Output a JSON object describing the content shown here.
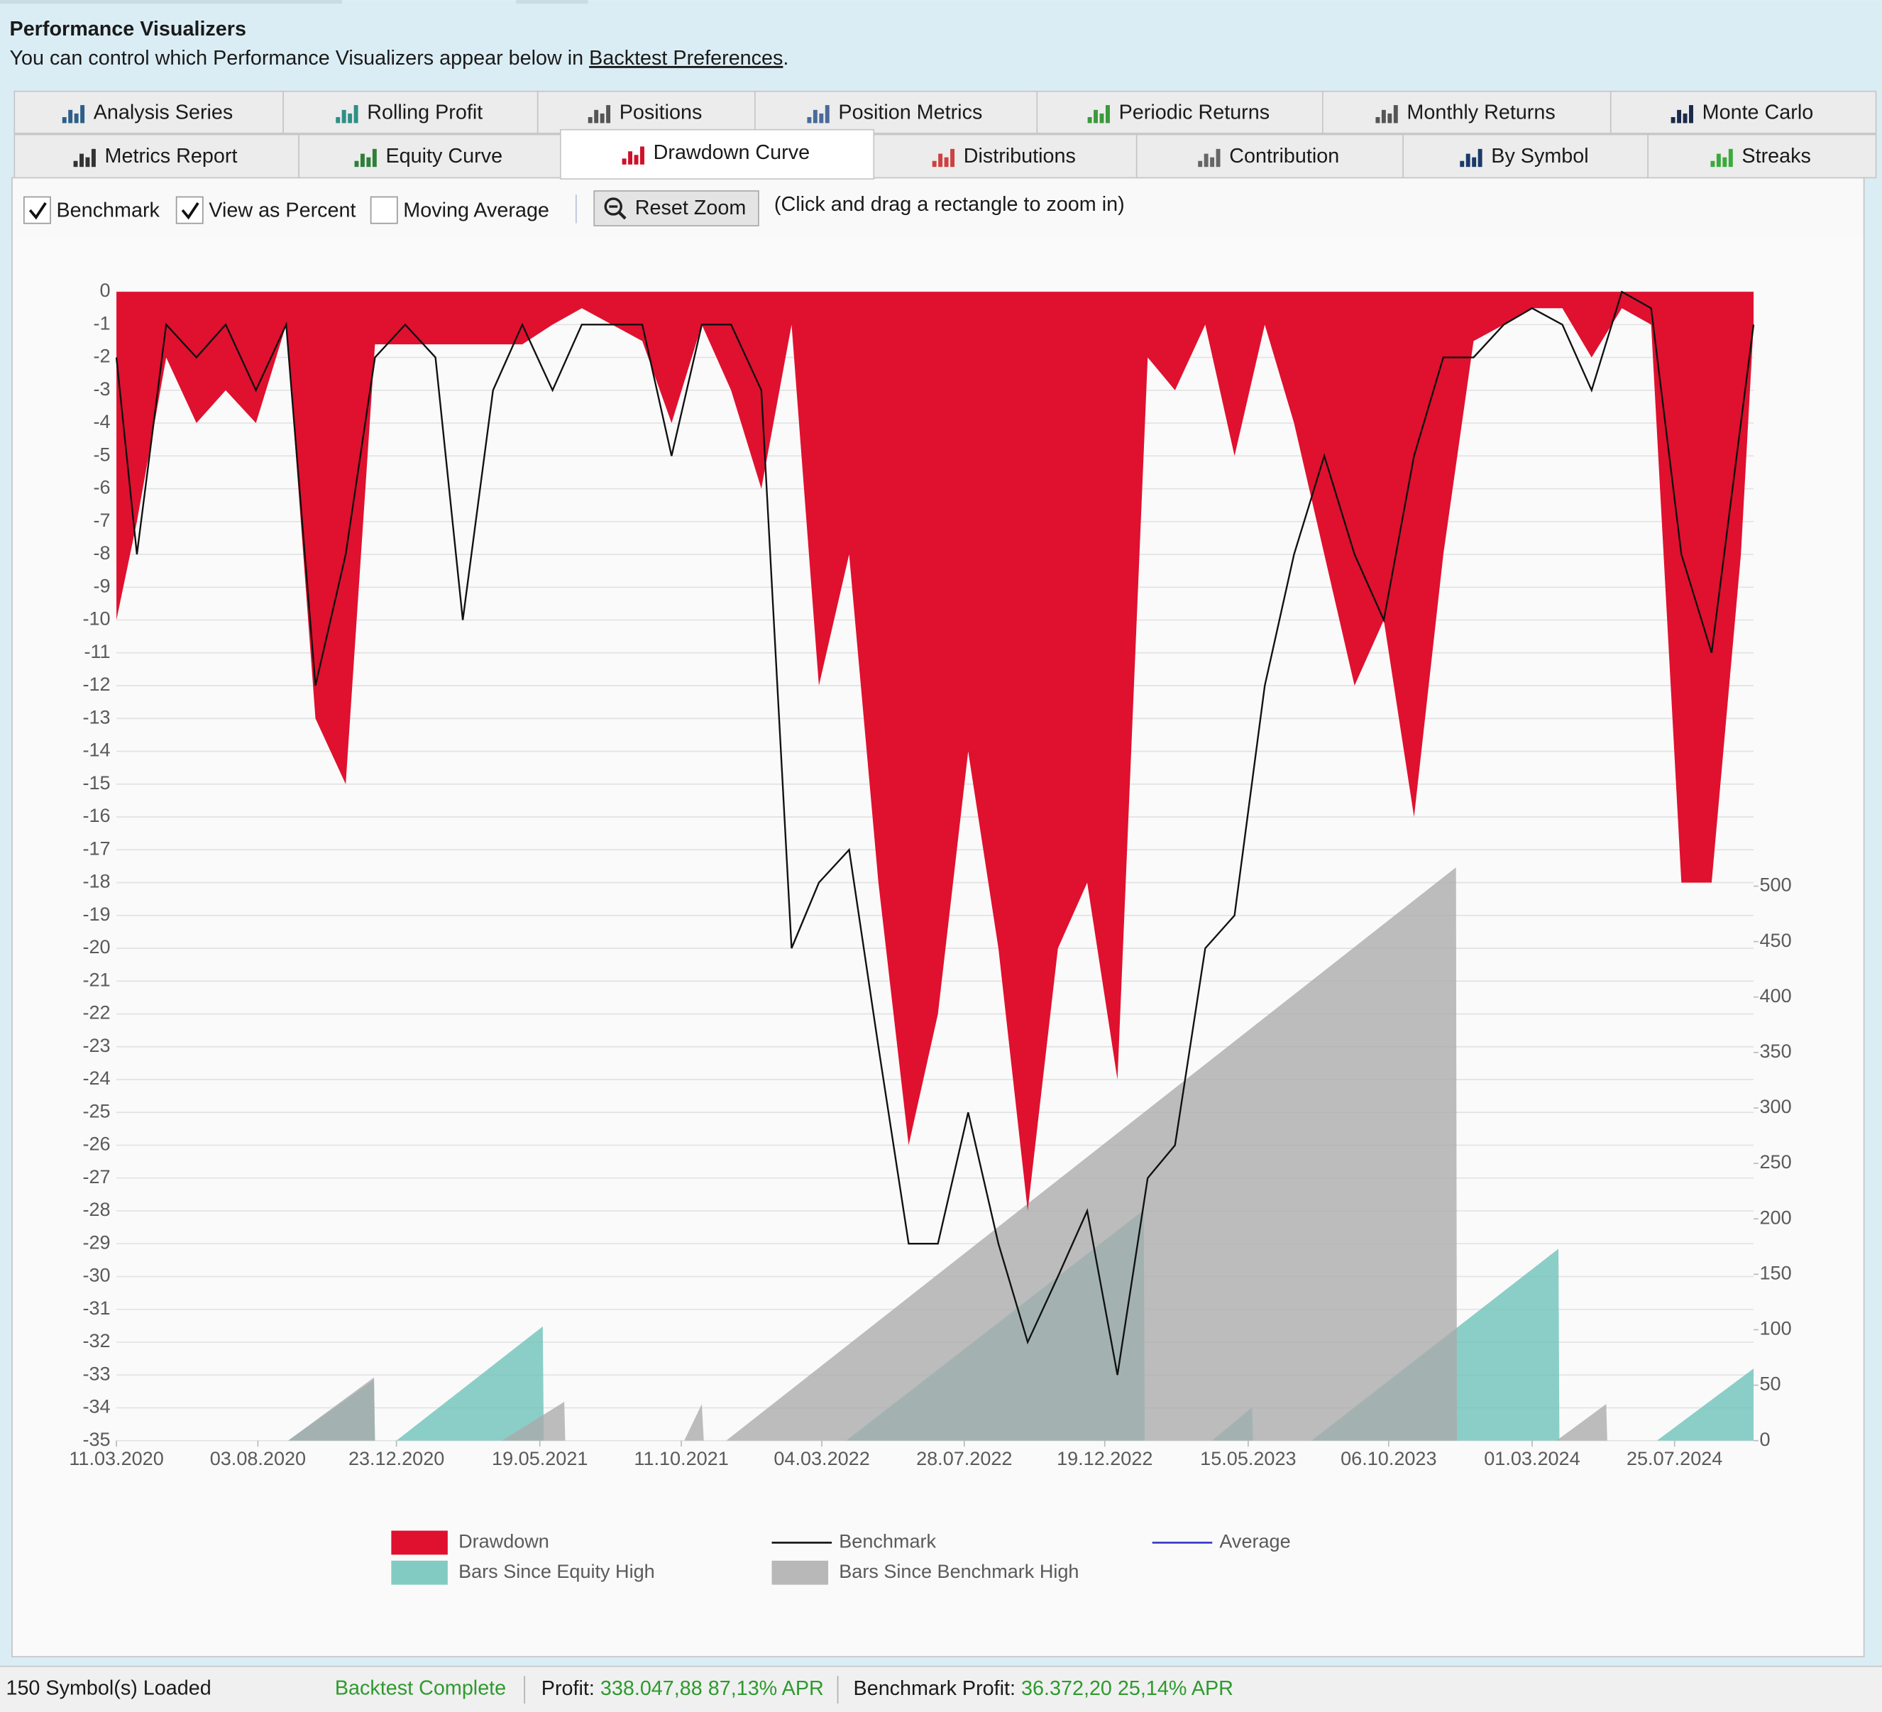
{
  "header": {
    "title": "Performance Visualizers",
    "text": "You can control which Performance Visualizers appear below in ",
    "link": "Backtest Preferences",
    "period": "."
  },
  "tabs": {
    "rows": [
      [
        {
          "label": "Analysis Series"
        },
        {
          "label": "Rolling Profit"
        },
        {
          "label": "Positions"
        },
        {
          "label": "Position Metrics"
        },
        {
          "label": "Periodic Returns"
        },
        {
          "label": "Monthly Returns"
        },
        {
          "label": "Monte Carlo"
        }
      ],
      [
        {
          "label": "Metrics Report"
        },
        {
          "label": "Equity Curve"
        },
        {
          "label": "Drawdown Curve",
          "selected": true
        },
        {
          "label": "Distributions"
        },
        {
          "label": "Contribution"
        },
        {
          "label": "By Symbol"
        },
        {
          "label": "Streaks"
        }
      ]
    ]
  },
  "toolbar": {
    "options": [
      {
        "label": "Benchmark",
        "checked": true
      },
      {
        "label": "View as Percent",
        "checked": true
      },
      {
        "label": "Moving Average",
        "checked": false
      }
    ],
    "button": "Reset Zoom",
    "hint": "(Click and drag a rectangle to zoom in)"
  },
  "chart_data": {
    "type": "area",
    "xlim": [
      "2020-03-11",
      "2024-10-14"
    ],
    "xticks": [
      {
        "value": "2020-03-11",
        "label": "11.03.2020"
      },
      {
        "value": "2020-08-03",
        "label": "03.08.2020"
      },
      {
        "value": "2020-12-23",
        "label": "23.12.2020"
      },
      {
        "value": "2021-05-19",
        "label": "19.05.2021"
      },
      {
        "value": "2021-10-11",
        "label": "11.10.2021"
      },
      {
        "value": "2022-03-04",
        "label": "04.03.2022"
      },
      {
        "value": "2022-07-28",
        "label": "28.07.2022"
      },
      {
        "value": "2022-12-19",
        "label": "19.12.2022"
      },
      {
        "value": "2023-05-15",
        "label": "15.05.2023"
      },
      {
        "value": "2023-10-06",
        "label": "06.10.2023"
      },
      {
        "value": "2024-03-01",
        "label": "01.03.2024"
      },
      {
        "value": "2024-07-25",
        "label": "25.07.2024"
      }
    ],
    "ylim": [
      -35,
      0
    ],
    "yticks": [
      -35,
      -34,
      -33,
      -32,
      -31,
      -30,
      -29,
      -28,
      -27,
      -26,
      -25,
      -24,
      -23,
      -22,
      -21,
      -20,
      -19,
      -18,
      -17,
      -16,
      -15,
      -14,
      -13,
      -12,
      -11,
      -10,
      -9,
      -8,
      -7,
      -6,
      -5,
      -4,
      -3,
      -2,
      -1,
      0
    ],
    "y2lim": [
      0,
      1036
    ],
    "y2ticks": [
      0,
      50,
      100,
      150,
      200,
      250,
      300,
      350,
      400,
      450,
      500
    ],
    "grid": true,
    "legend": "bottom",
    "series": [
      {
        "name": "Drawdown",
        "type": "area",
        "color": "#e0102f",
        "x": [
          "2020-03-11",
          "2020-04-01",
          "2020-05-01",
          "2020-06-01",
          "2020-07-01",
          "2020-08-01",
          "2020-09-01",
          "2020-10-01",
          "2020-11-01",
          "2020-12-01",
          "2021-01-01",
          "2021-02-01",
          "2021-03-01",
          "2021-04-01",
          "2021-05-01",
          "2021-06-01",
          "2021-07-01",
          "2021-08-01",
          "2021-09-01",
          "2021-10-01",
          "2021-11-01",
          "2021-12-01",
          "2022-01-01",
          "2022-02-01",
          "2022-03-01",
          "2022-04-01",
          "2022-05-01",
          "2022-06-01",
          "2022-07-01",
          "2022-08-01",
          "2022-09-01",
          "2022-10-01",
          "2022-11-01",
          "2022-12-01",
          "2023-01-01",
          "2023-02-01",
          "2023-03-01",
          "2023-04-01",
          "2023-05-01",
          "2023-06-01",
          "2023-07-01",
          "2023-08-01",
          "2023-09-01",
          "2023-10-01",
          "2023-11-01",
          "2023-12-01",
          "2024-01-01",
          "2024-02-01",
          "2024-03-01",
          "2024-04-01",
          "2024-05-01",
          "2024-06-01",
          "2024-07-01",
          "2024-08-01",
          "2024-09-01",
          "2024-10-01",
          "2024-10-14"
        ],
        "values": [
          -10,
          -7,
          -2,
          -4,
          -3,
          -4,
          -1,
          -13,
          -15,
          -1.6,
          -1.6,
          -1.6,
          -1.6,
          -1.6,
          -1.6,
          -1,
          -0.5,
          -1,
          -1.5,
          -4,
          -1,
          -3,
          -6,
          -1,
          -12,
          -8,
          -18,
          -26,
          -22,
          -14,
          -20,
          -28,
          -20,
          -18,
          -24,
          -2,
          -3,
          -1,
          -5,
          -1,
          -4,
          -8,
          -12,
          -10,
          -16,
          -8,
          -1.5,
          -1,
          -0.5,
          -0.5,
          -2,
          -0.5,
          -1,
          -18,
          -18,
          -8,
          -1
        ]
      },
      {
        "name": "Benchmark",
        "type": "line",
        "color": "#111111",
        "x": [
          "2020-03-11",
          "2020-04-01",
          "2020-05-01",
          "2020-06-01",
          "2020-07-01",
          "2020-08-01",
          "2020-09-01",
          "2020-10-01",
          "2020-11-01",
          "2020-12-01",
          "2021-01-01",
          "2021-02-01",
          "2021-03-01",
          "2021-04-01",
          "2021-05-01",
          "2021-06-01",
          "2021-07-01",
          "2021-08-01",
          "2021-09-01",
          "2021-10-01",
          "2021-11-01",
          "2021-12-01",
          "2022-01-01",
          "2022-02-01",
          "2022-03-01",
          "2022-04-01",
          "2022-05-01",
          "2022-06-01",
          "2022-07-01",
          "2022-08-01",
          "2022-09-01",
          "2022-10-01",
          "2022-11-01",
          "2022-12-01",
          "2023-01-01",
          "2023-02-01",
          "2023-03-01",
          "2023-04-01",
          "2023-05-01",
          "2023-06-01",
          "2023-07-01",
          "2023-08-01",
          "2023-09-01",
          "2023-10-01",
          "2023-11-01",
          "2023-12-01",
          "2024-01-01",
          "2024-02-01",
          "2024-03-01",
          "2024-04-01",
          "2024-05-01",
          "2024-06-01",
          "2024-07-01",
          "2024-08-01",
          "2024-09-01",
          "2024-10-01",
          "2024-10-14"
        ],
        "values": [
          -2,
          -8,
          -1,
          -2,
          -1,
          -3,
          -1,
          -12,
          -8,
          -2,
          -1,
          -2,
          -10,
          -3,
          -1,
          -3,
          -1,
          -1,
          -1,
          -5,
          -1,
          -1,
          -3,
          -20,
          -18,
          -17,
          -23,
          -29,
          -29,
          -25,
          -29,
          -32,
          -30,
          -28,
          -33,
          -27,
          -26,
          -20,
          -19,
          -12,
          -8,
          -5,
          -8,
          -10,
          -5,
          -2,
          -2,
          -1,
          -0.5,
          -1,
          -3,
          0,
          -0.5,
          -8,
          -11,
          -4,
          -1
        ]
      },
      {
        "name": "Average",
        "type": "line",
        "color": "#3535c8"
      },
      {
        "name": "Bars Since Equity High",
        "type": "area",
        "axis": "y2",
        "color": "#6cc2b9",
        "x": [
          "2020-03-11",
          "2020-09-03",
          "2020-11-30",
          "2020-12-01",
          "2020-12-23",
          "2021-05-22",
          "2021-05-23",
          "2022-03-29",
          "2023-01-28",
          "2023-01-29",
          "2023-04-08",
          "2023-05-19",
          "2023-05-20",
          "2023-07-19",
          "2024-03-28",
          "2024-03-29",
          "2024-07-07",
          "2024-10-14"
        ],
        "values": [
          0,
          0,
          55,
          0,
          0,
          103,
          0,
          0,
          208,
          0,
          0,
          30,
          0,
          0,
          173,
          0,
          0,
          65
        ]
      },
      {
        "name": "Bars Since Benchmark High",
        "type": "area",
        "axis": "y2",
        "color": "#ababab",
        "x": [
          "2020-03-11",
          "2020-09-03",
          "2020-11-30",
          "2020-12-01",
          "2021-04-10",
          "2021-06-13",
          "2021-06-14",
          "2021-10-14",
          "2021-11-01",
          "2021-11-03",
          "2021-11-26",
          "2023-12-14",
          "2023-12-15",
          "2024-03-26",
          "2024-05-16",
          "2024-05-17",
          "2024-10-14"
        ],
        "values": [
          0,
          0,
          57,
          0,
          0,
          35,
          0,
          0,
          33,
          0,
          0,
          517,
          0,
          0,
          33,
          0,
          0
        ]
      }
    ]
  },
  "status_bar": {
    "symbols": "150 Symbol(s) Loaded",
    "status": "Backtest Complete",
    "profit_label": "Profit: ",
    "profit": "338.047,88 87,13% APR",
    "benchmark_label": "Benchmark Profit: ",
    "benchmark_profit": "36.372,20 25,14% APR"
  }
}
